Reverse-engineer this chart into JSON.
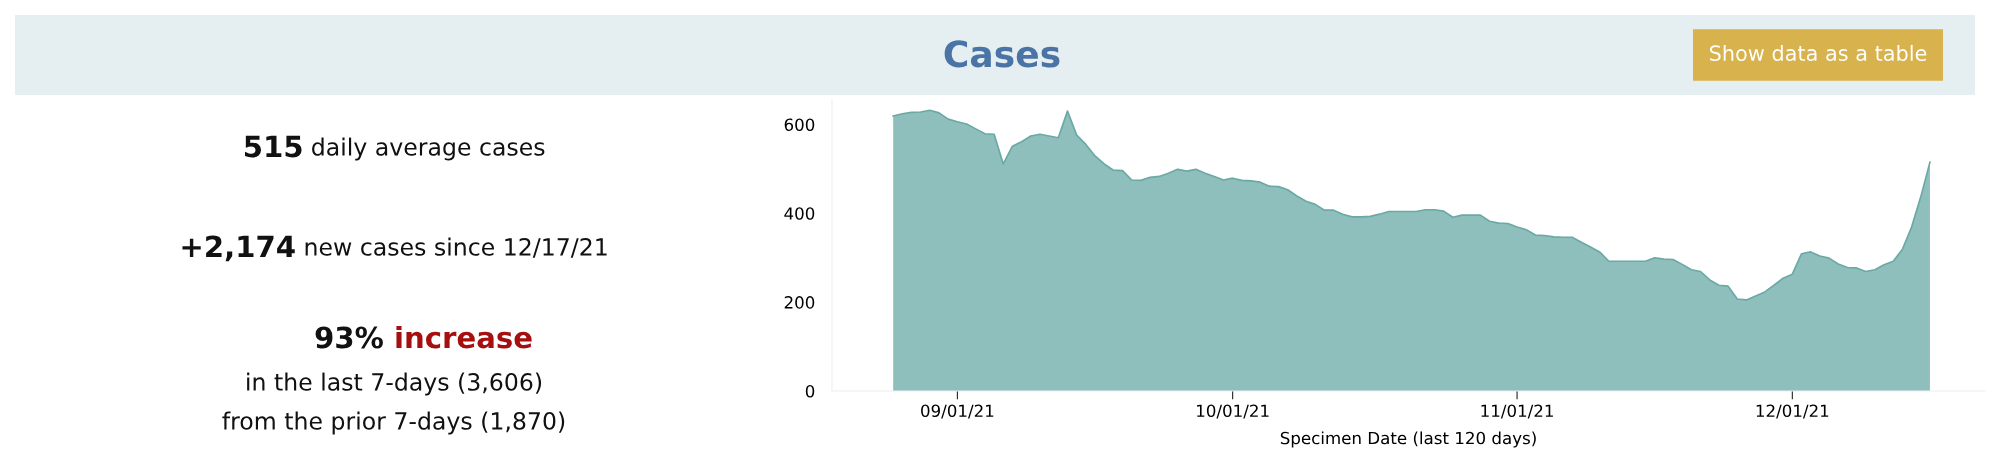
{
  "chart_data": [
    {
      "type": "other",
      "annotations": [
        "515 daily average cases",
        "+2,174 new cases since 12/17/21",
        "93% increase",
        "in the last 7-days (3,606)",
        "from the prior 7-days (1,870)"
      ]
    },
    {
      "type": "area",
      "title": "Cases",
      "xlabel": "Specimen Date (last 120 days)",
      "annotations": [
        "Show data as a table"
      ],
      "color": "#8fbfbc",
      "grid": false,
      "x": [
        "2021-08-25",
        "2021-08-26",
        "2021-08-27",
        "2021-08-28",
        "2021-08-29",
        "2021-08-30",
        "2021-08-31",
        "2021-09-01",
        "2021-09-02",
        "2021-09-03",
        "2021-09-04",
        "2021-09-05",
        "2021-09-06",
        "2021-09-07",
        "2021-09-08",
        "2021-09-09",
        "2021-09-10",
        "2021-09-11",
        "2021-09-12",
        "2021-09-13",
        "2021-09-14",
        "2021-09-15",
        "2021-09-16",
        "2021-09-17",
        "2021-09-18",
        "2021-09-19",
        "2021-09-20",
        "2021-09-21",
        "2021-09-22",
        "2021-09-23",
        "2021-09-24",
        "2021-09-25",
        "2021-09-26",
        "2021-09-27",
        "2021-09-28",
        "2021-09-29",
        "2021-09-30",
        "2021-10-01",
        "2021-10-02",
        "2021-10-03",
        "2021-10-04",
        "2021-10-05",
        "2021-10-06",
        "2021-10-07",
        "2021-10-08",
        "2021-10-09",
        "2021-10-10",
        "2021-10-11",
        "2021-10-12",
        "2021-10-13",
        "2021-10-14",
        "2021-10-15",
        "2021-10-16",
        "2021-10-17",
        "2021-10-18",
        "2021-10-19",
        "2021-10-20",
        "2021-10-21",
        "2021-10-22",
        "2021-10-23",
        "2021-10-24",
        "2021-10-25",
        "2021-10-26",
        "2021-10-27",
        "2021-10-28",
        "2021-10-29",
        "2021-10-30",
        "2021-10-31",
        "2021-11-01",
        "2021-11-02",
        "2021-11-03",
        "2021-11-04",
        "2021-11-05",
        "2021-11-06",
        "2021-11-07",
        "2021-11-08",
        "2021-11-09",
        "2021-11-10",
        "2021-11-11",
        "2021-11-12",
        "2021-11-13",
        "2021-11-14",
        "2021-11-15",
        "2021-11-16",
        "2021-11-17",
        "2021-11-18",
        "2021-11-19",
        "2021-11-20",
        "2021-11-21",
        "2021-11-22",
        "2021-11-23",
        "2021-11-24",
        "2021-11-25",
        "2021-11-26",
        "2021-11-27",
        "2021-11-28",
        "2021-11-29",
        "2021-11-30",
        "2021-12-01",
        "2021-12-02",
        "2021-12-03",
        "2021-12-04",
        "2021-12-05",
        "2021-12-06",
        "2021-12-07",
        "2021-12-08",
        "2021-12-09",
        "2021-12-10",
        "2021-12-11",
        "2021-12-12",
        "2021-12-13",
        "2021-12-14",
        "2021-12-15",
        "2021-12-16"
      ],
      "values": [
        619,
        624,
        627,
        628,
        632,
        626,
        612,
        606,
        601,
        590,
        579,
        578,
        511,
        551,
        561,
        574,
        578,
        574,
        570,
        630,
        576,
        555,
        529,
        511,
        497,
        496,
        475,
        474,
        481,
        483,
        490,
        499,
        495,
        499,
        490,
        483,
        475,
        479,
        474,
        473,
        470,
        461,
        460,
        453,
        439,
        427,
        420,
        407,
        407,
        398,
        392,
        392,
        393,
        398,
        404,
        404,
        404,
        404,
        408,
        408,
        405,
        391,
        396,
        396,
        396,
        382,
        378,
        377,
        369,
        363,
        351,
        350,
        347,
        346,
        346,
        335,
        324,
        313,
        292,
        292,
        292,
        292,
        292,
        300,
        297,
        296,
        285,
        273,
        269,
        250,
        238,
        236,
        207,
        205,
        214,
        223,
        238,
        254,
        263,
        309,
        313,
        304,
        299,
        286,
        278,
        277,
        269,
        273,
        284,
        292,
        319,
        369,
        437,
        515
      ],
      "xlim": [
        "2021-08-18T08:00",
        "2021-12-22"
      ],
      "xticks": [
        {
          "value": "2021-09-01",
          "label": "09/01/21"
        },
        {
          "value": "2021-10-01",
          "label": "10/01/21"
        },
        {
          "value": "2021-11-01",
          "label": "11/01/21"
        },
        {
          "value": "2021-12-01",
          "label": "12/01/21"
        }
      ],
      "ylim": [
        0,
        655
      ],
      "yticks": [
        0,
        200,
        400,
        600
      ]
    }
  ]
}
